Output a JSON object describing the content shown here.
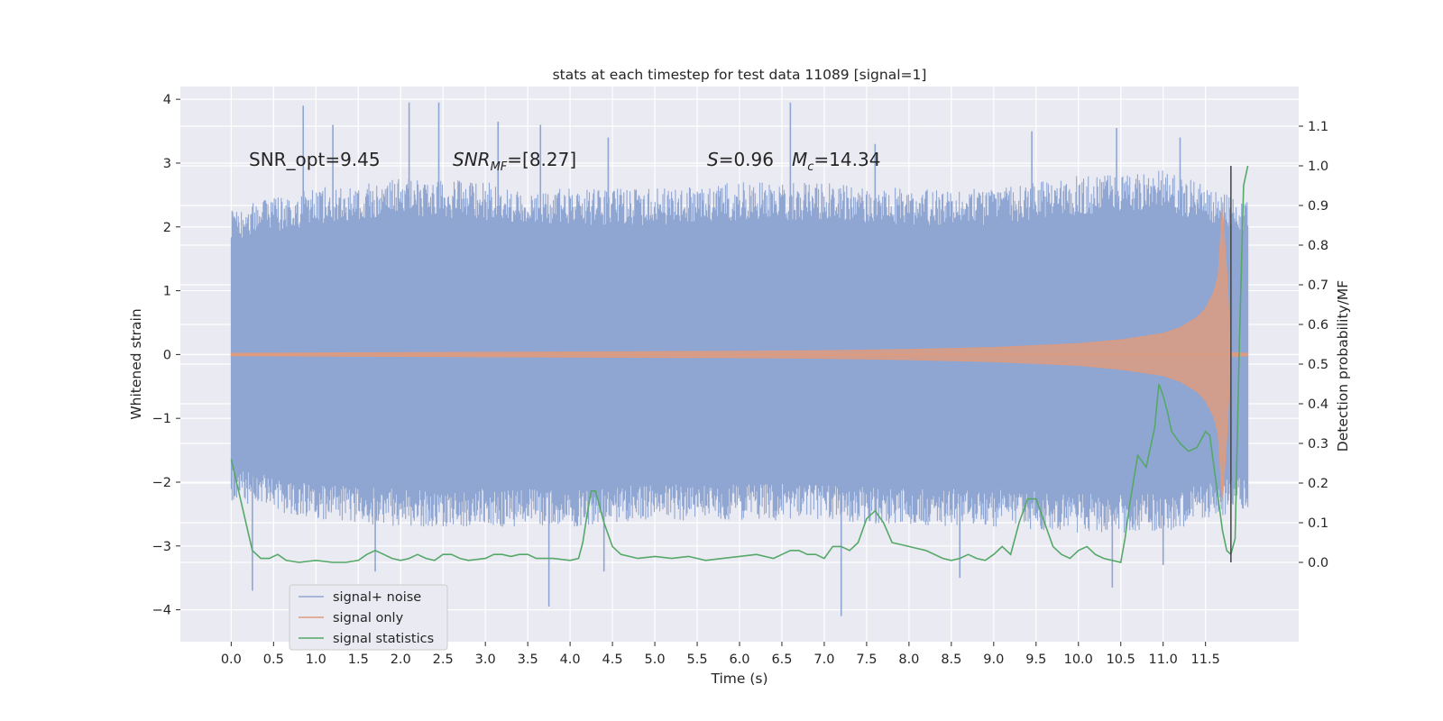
{
  "chart_data": {
    "type": "line",
    "title": "stats at each timestep for test data 11089 [signal=1]",
    "xlabel": "Time (s)",
    "ylabel": "Whitened strain",
    "ylabel_right": "Detection probability/MF",
    "xlim": [
      -0.6,
      12.6
    ],
    "ylim": [
      -4.5,
      4.2
    ],
    "ylim_right": [
      -0.2,
      1.2
    ],
    "x_ticks": [
      "0.0",
      "0.5",
      "1.0",
      "1.5",
      "2.0",
      "2.5",
      "3.0",
      "3.5",
      "4.0",
      "4.5",
      "5.0",
      "5.5",
      "6.0",
      "6.5",
      "7.0",
      "7.5",
      "8.0",
      "8.5",
      "9.0",
      "9.5",
      "10.0",
      "10.5",
      "11.0",
      "11.5"
    ],
    "y_ticks_left": [
      "4",
      "3",
      "2",
      "1",
      "0",
      "−1",
      "−2",
      "−3",
      "−4"
    ],
    "y_ticks_right": [
      "1.1",
      "1.0",
      "0.9",
      "0.8",
      "0.7",
      "0.6",
      "0.5",
      "0.4",
      "0.3",
      "0.2",
      "0.1",
      "0.0"
    ],
    "grid": true,
    "legend_position": "lower-left",
    "annotations": {
      "snr_opt": "SNR_opt=9.45",
      "snr_mf_main": "SNR",
      "snr_mf_sub": "MF",
      "snr_mf_value": "=[8.27]",
      "s_sym": "S",
      "s_value": "=0.96",
      "mc_main": "M",
      "mc_sub": "c",
      "mc_value": "=14.34"
    },
    "series": [
      {
        "name": "signal+ noise",
        "color": "#8fa6d2",
        "axis": "left",
        "style": "noise band (whitened strain, mostly within ±2.5, peaks to ±3.9)",
        "x_range": [
          0.0,
          12.0
        ],
        "envelope": {
          "x": [
            0.0,
            1.0,
            2.0,
            3.0,
            4.0,
            5.0,
            6.0,
            7.0,
            8.0,
            9.0,
            10.0,
            11.0,
            12.0
          ],
          "upper": [
            2.3,
            2.6,
            2.8,
            2.7,
            2.6,
            2.6,
            2.7,
            2.7,
            2.6,
            2.6,
            2.8,
            2.9,
            2.4
          ],
          "lower": [
            -2.3,
            -2.6,
            -2.7,
            -2.7,
            -2.7,
            -2.6,
            -2.6,
            -2.6,
            -2.7,
            -2.7,
            -2.8,
            -2.8,
            -2.4
          ]
        },
        "peaks_up": [
          [
            0.3,
            2.0
          ],
          [
            0.85,
            3.9
          ],
          [
            1.2,
            3.6
          ],
          [
            2.1,
            3.95
          ],
          [
            2.45,
            3.95
          ],
          [
            3.15,
            3.65
          ],
          [
            3.65,
            3.6
          ],
          [
            4.45,
            3.4
          ],
          [
            6.6,
            3.95
          ],
          [
            7.6,
            3.3
          ],
          [
            9.45,
            3.5
          ],
          [
            10.45,
            3.55
          ],
          [
            11.2,
            3.4
          ]
        ],
        "peaks_down": [
          [
            0.25,
            -3.7
          ],
          [
            1.7,
            -3.4
          ],
          [
            3.75,
            -3.95
          ],
          [
            4.4,
            -3.4
          ],
          [
            7.2,
            -4.1
          ],
          [
            8.6,
            -3.5
          ],
          [
            10.4,
            -3.65
          ],
          [
            11.0,
            -3.3
          ]
        ]
      },
      {
        "name": "signal only",
        "color": "#dd9b80",
        "axis": "left",
        "style": "chirp amplitude envelope",
        "x": [
          0.0,
          2.0,
          4.0,
          6.0,
          7.0,
          8.0,
          9.0,
          10.0,
          10.5,
          11.0,
          11.2,
          11.4,
          11.5,
          11.6,
          11.65,
          11.7,
          11.75,
          11.8,
          12.0
        ],
        "amplitude": [
          0.02,
          0.03,
          0.04,
          0.05,
          0.06,
          0.08,
          0.11,
          0.17,
          0.23,
          0.33,
          0.42,
          0.58,
          0.72,
          0.98,
          1.25,
          2.3,
          1.3,
          0.03,
          0.02
        ]
      },
      {
        "name": "signal statistics",
        "color": "#55a868",
        "axis": "right",
        "x": [
          0.0,
          0.12,
          0.25,
          0.35,
          0.45,
          0.55,
          0.65,
          0.8,
          1.0,
          1.2,
          1.35,
          1.5,
          1.6,
          1.7,
          1.8,
          1.9,
          2.0,
          2.1,
          2.2,
          2.3,
          2.4,
          2.5,
          2.6,
          2.7,
          2.8,
          3.0,
          3.1,
          3.2,
          3.3,
          3.4,
          3.5,
          3.6,
          3.7,
          3.8,
          4.0,
          4.1,
          4.15,
          4.2,
          4.25,
          4.3,
          4.35,
          4.4,
          4.5,
          4.6,
          4.7,
          4.8,
          5.0,
          5.2,
          5.4,
          5.6,
          5.8,
          6.0,
          6.2,
          6.4,
          6.5,
          6.6,
          6.7,
          6.8,
          6.9,
          7.0,
          7.1,
          7.2,
          7.3,
          7.4,
          7.5,
          7.6,
          7.7,
          7.8,
          8.0,
          8.2,
          8.4,
          8.5,
          8.6,
          8.7,
          8.8,
          8.9,
          9.0,
          9.1,
          9.2,
          9.3,
          9.4,
          9.5,
          9.6,
          9.7,
          9.8,
          9.9,
          10.0,
          10.1,
          10.2,
          10.3,
          10.4,
          10.5,
          10.55,
          10.6,
          10.7,
          10.8,
          10.9,
          10.95,
          11.0,
          11.05,
          11.1,
          11.2,
          11.3,
          11.4,
          11.5,
          11.55,
          11.6,
          11.65,
          11.7,
          11.75,
          11.8,
          11.85,
          11.9,
          11.95,
          12.0
        ],
        "values": [
          0.26,
          0.15,
          0.03,
          0.01,
          0.01,
          0.02,
          0.005,
          0.0,
          0.005,
          0.0,
          0.0,
          0.005,
          0.02,
          0.03,
          0.02,
          0.01,
          0.005,
          0.01,
          0.02,
          0.01,
          0.005,
          0.02,
          0.02,
          0.01,
          0.005,
          0.01,
          0.02,
          0.02,
          0.015,
          0.02,
          0.02,
          0.01,
          0.01,
          0.01,
          0.005,
          0.01,
          0.05,
          0.12,
          0.18,
          0.18,
          0.14,
          0.1,
          0.04,
          0.02,
          0.015,
          0.01,
          0.015,
          0.01,
          0.015,
          0.005,
          0.01,
          0.015,
          0.02,
          0.01,
          0.02,
          0.03,
          0.03,
          0.02,
          0.02,
          0.01,
          0.04,
          0.04,
          0.03,
          0.05,
          0.11,
          0.13,
          0.1,
          0.05,
          0.04,
          0.03,
          0.01,
          0.005,
          0.01,
          0.02,
          0.01,
          0.005,
          0.02,
          0.04,
          0.02,
          0.1,
          0.16,
          0.16,
          0.1,
          0.04,
          0.02,
          0.01,
          0.03,
          0.04,
          0.02,
          0.01,
          0.005,
          0.0,
          0.06,
          0.14,
          0.27,
          0.24,
          0.34,
          0.45,
          0.42,
          0.38,
          0.33,
          0.3,
          0.28,
          0.29,
          0.33,
          0.32,
          0.24,
          0.16,
          0.08,
          0.03,
          0.02,
          0.06,
          0.55,
          0.95,
          1.0
        ]
      }
    ],
    "vertical_line": {
      "x": 11.8,
      "color": "#444444",
      "y_range_right": [
        0.0,
        1.0
      ]
    }
  }
}
